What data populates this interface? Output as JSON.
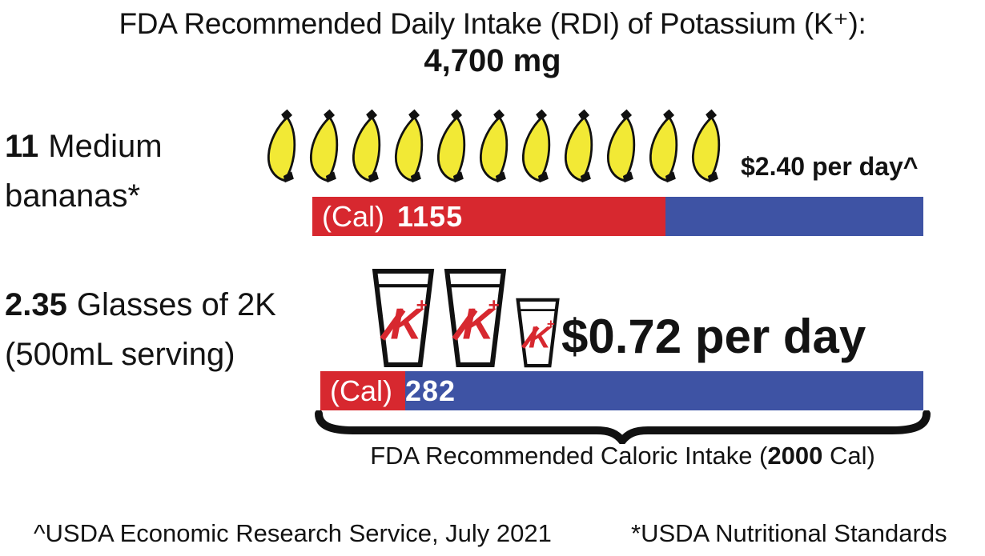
{
  "title": {
    "line1": "FDA Recommended Daily Intake (RDI) of Potassium (K⁺):",
    "line2": "4,700 mg"
  },
  "rows": [
    {
      "qty": "11",
      "label": "Medium",
      "label_line2": "bananas*",
      "icon": "banana-icon",
      "icon_count": 11,
      "price": "$2.40 per day^",
      "bar": {
        "label": "(Cal)",
        "value": "1155",
        "calories": 1155,
        "total": 2000
      }
    },
    {
      "qty": "2.35",
      "label": "Glasses of 2K",
      "label_line2": "(500mL serving)",
      "icon": "potassium-glass-icon",
      "glasses": [
        1,
        1,
        0.35
      ],
      "price": "$0.72 per day",
      "bar": {
        "label": "(Cal)",
        "value": "282",
        "calories": 282,
        "total": 2000
      }
    }
  ],
  "brace_caption": {
    "prefix": "FDA Recommended Caloric Intake (",
    "bold": "2000",
    "suffix": " Cal)"
  },
  "footnotes": {
    "left": "^USDA Economic Research Service, July 2021",
    "right": "*USDA Nutritional Standards"
  },
  "colors": {
    "red": "#D7282F",
    "blue": "#3E53A4",
    "yellow": "#F2E935",
    "ink": "#131313"
  },
  "chart_data": {
    "type": "bar",
    "orientation": "horizontal",
    "title": "FDA Recommended Daily Intake (RDI) of Potassium (K⁺): 4,700 mg",
    "rdi_potassium_mg": 4700,
    "categories": [
      "11 Medium bananas*",
      "2.35 Glasses of 2K (500mL serving)"
    ],
    "series": [
      {
        "name": "Calories (Cal)",
        "values": [
          1155,
          282
        ]
      },
      {
        "name": "Cost per day (USD)",
        "values": [
          2.4,
          0.72
        ]
      }
    ],
    "pictograph": [
      {
        "icon": "banana",
        "count": 11
      },
      {
        "icon": "glass-500mL",
        "count": 2.35
      }
    ],
    "xlim": [
      0,
      2000
    ],
    "x_reference": {
      "value": 2000,
      "label": "FDA Recommended Caloric Intake (2000 Cal)"
    },
    "bar_colors": {
      "consumed": "#D7282F",
      "remaining": "#3E53A4"
    },
    "annotations": [
      "$2.40 per day^",
      "$0.72 per day"
    ],
    "footnotes": [
      "^USDA Economic Research Service, July 2021",
      "*USDA Nutritional Standards"
    ]
  }
}
